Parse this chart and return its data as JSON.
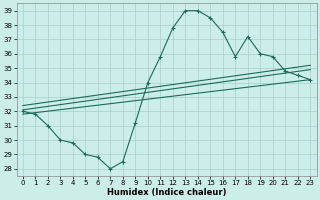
{
  "xlabel": "Humidex (Indice chaleur)",
  "background_color": "#cceee8",
  "grid_color": "#aacccc",
  "line_color": "#1a6b5a",
  "xlim": [
    -0.5,
    23.5
  ],
  "ylim": [
    27.5,
    39.5
  ],
  "yticks": [
    28,
    29,
    30,
    31,
    32,
    33,
    34,
    35,
    36,
    37,
    38,
    39
  ],
  "xticks": [
    0,
    1,
    2,
    3,
    4,
    5,
    6,
    7,
    8,
    9,
    10,
    11,
    12,
    13,
    14,
    15,
    16,
    17,
    18,
    19,
    20,
    21,
    22,
    23
  ],
  "humidex_x": [
    0,
    1,
    2,
    3,
    4,
    5,
    6,
    7,
    8,
    9,
    10,
    11,
    12,
    13,
    14,
    15,
    16,
    17,
    18,
    19,
    20,
    21,
    22,
    23
  ],
  "humidex_y": [
    32.0,
    31.8,
    31.0,
    30.0,
    29.8,
    29.0,
    28.8,
    28.0,
    28.5,
    31.2,
    34.0,
    35.8,
    37.8,
    39.0,
    39.0,
    38.5,
    37.5,
    35.8,
    37.2,
    36.0,
    35.8,
    34.8,
    34.5,
    34.2
  ],
  "trend1_x": [
    0,
    23
  ],
  "trend1_y": [
    32.1,
    34.9
  ],
  "trend2_x": [
    0,
    23
  ],
  "trend2_y": [
    31.8,
    34.2
  ],
  "trend3_x": [
    0,
    23
  ],
  "trend3_y": [
    32.4,
    35.2
  ]
}
